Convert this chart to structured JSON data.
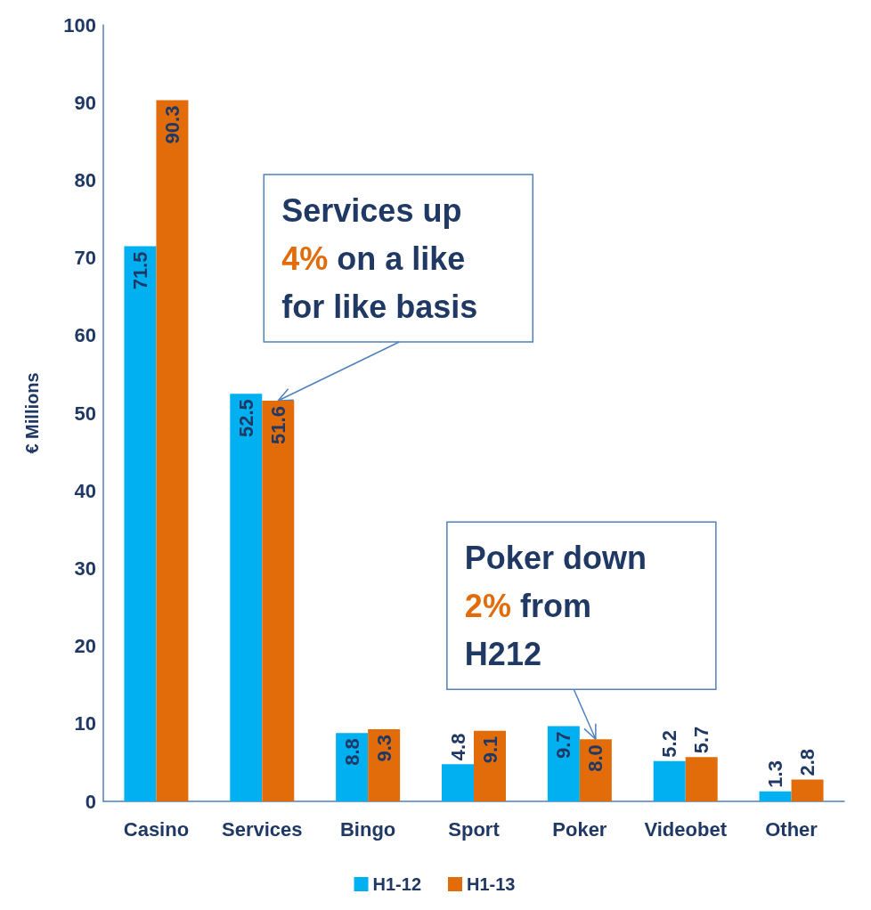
{
  "chart_data": {
    "type": "bar",
    "ylabel": "€ Millions",
    "categories": [
      "Casino",
      "Services",
      "Bingo",
      "Sport",
      "Poker",
      "Videobet",
      "Other"
    ],
    "series": [
      {
        "name": "H1-12",
        "color": "#00b0f0",
        "values": [
          71.5,
          52.5,
          8.8,
          4.8,
          9.7,
          5.2,
          1.3
        ],
        "value_labels": [
          "71.5",
          "52.5",
          "8.8",
          "4.8",
          "9.7",
          "5.2",
          "1.3"
        ]
      },
      {
        "name": "H1-13",
        "color": "#e36c0a",
        "values": [
          90.3,
          51.6,
          9.3,
          9.1,
          8.0,
          5.7,
          2.8
        ],
        "value_labels": [
          "90.3",
          "51.6",
          "9.3",
          "9.1",
          "8.0",
          "5.7",
          "2.8"
        ]
      }
    ],
    "ylim": [
      0,
      100
    ],
    "yticks": [
      0,
      10,
      20,
      30,
      40,
      50,
      60,
      70,
      80,
      90,
      100
    ],
    "grid": false,
    "legend": "bottom",
    "annotations": [
      {
        "text": "Services up 4% on a like for like basis",
        "x": "Services",
        "y": 51.6
      },
      {
        "text": "Poker down 2% from H212",
        "x": "Poker",
        "y": 8.0
      }
    ]
  }
}
